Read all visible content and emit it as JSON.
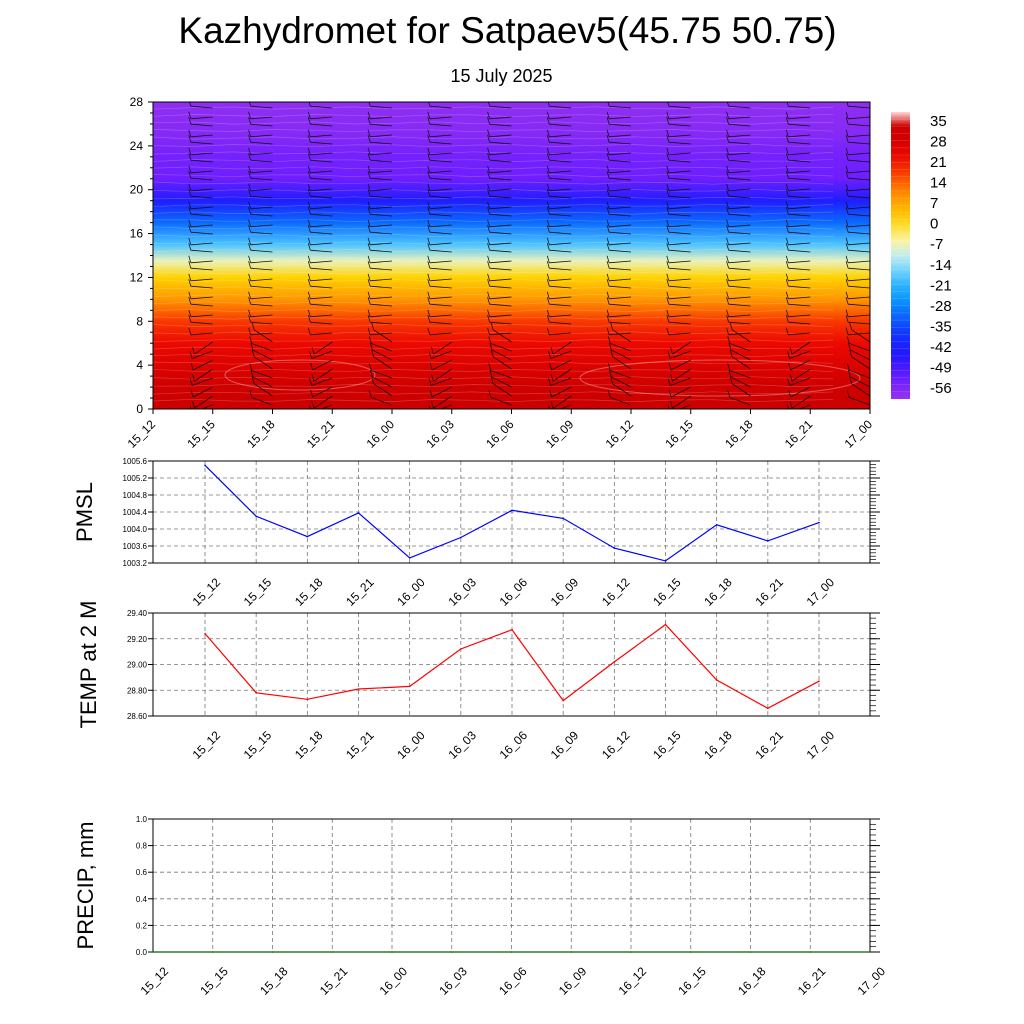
{
  "title": "Kazhydromet for Satpaev5(45.75 50.75)",
  "subtitle": "15 July 2025",
  "time_labels": [
    "15_12",
    "15_15",
    "15_18",
    "15_21",
    "16_00",
    "16_03",
    "16_06",
    "16_09",
    "16_12",
    "16_15",
    "16_18",
    "16_21",
    "17_00"
  ],
  "chart_data": [
    {
      "type": "heatmap",
      "name": "temperature-height-section",
      "ylim": [
        0,
        28
      ],
      "yticks": [
        0,
        4,
        8,
        12,
        16,
        20,
        24,
        28
      ],
      "colorbar_labels": [
        35,
        28,
        21,
        14,
        7,
        0,
        -7,
        -14,
        -21,
        -28,
        -35,
        -42,
        -49,
        -56
      ],
      "level_temps": [
        {
          "h": 0,
          "t": 33
        },
        {
          "h": 2,
          "t": 31
        },
        {
          "h": 4,
          "t": 26
        },
        {
          "h": 6,
          "t": 22
        },
        {
          "h": 8,
          "t": 17
        },
        {
          "h": 10,
          "t": 8
        },
        {
          "h": 12,
          "t": 0
        },
        {
          "h": 13.5,
          "t": -9
        },
        {
          "h": 15,
          "t": -20
        },
        {
          "h": 17,
          "t": -33
        },
        {
          "h": 19,
          "t": -46
        },
        {
          "h": 21,
          "t": -56
        },
        {
          "h": 23,
          "t": -57
        },
        {
          "h": 25,
          "t": -60
        },
        {
          "h": 28,
          "t": -62
        }
      ],
      "wind_barbs": true,
      "grid": false
    },
    {
      "type": "line",
      "name": "pmsl",
      "ylabel": "PMSL",
      "ylim": [
        1003.2,
        1005.6
      ],
      "yticks": [
        "1003.2",
        "1003.6",
        "1004.0",
        "1004.4",
        "1004.8",
        "1005.2",
        "1005.6"
      ],
      "color": "#0000ff",
      "series": [
        {
          "values": [
            1005.5,
            1004.3,
            1003.82,
            1004.38,
            1003.32,
            1003.8,
            1004.44,
            1004.25,
            1003.55,
            1003.25,
            1004.1,
            1003.72,
            1004.15
          ]
        }
      ],
      "grid": true
    },
    {
      "type": "line",
      "name": "temp2m",
      "ylabel": "TEMP at 2 M",
      "ylim": [
        28.6,
        29.4
      ],
      "yticks": [
        "28.60",
        "28.80",
        "29.00",
        "29.20",
        "29.40"
      ],
      "color": "#ff0000",
      "series": [
        {
          "values": [
            29.24,
            28.78,
            28.73,
            28.81,
            28.83,
            29.12,
            29.27,
            28.72,
            29.02,
            29.31,
            28.88,
            28.66,
            28.87
          ]
        }
      ],
      "grid": true
    },
    {
      "type": "line",
      "name": "precip",
      "ylabel": "PRECIP, mm",
      "ylim": [
        0,
        1
      ],
      "yticks": [
        "0.0",
        "0.2",
        "0.4",
        "0.6",
        "0.8",
        "1.0"
      ],
      "color": "#006400",
      "series": [
        {
          "values": [
            0,
            0,
            0,
            0,
            0,
            0,
            0,
            0,
            0,
            0,
            0,
            0,
            0
          ]
        }
      ],
      "grid": true
    }
  ]
}
